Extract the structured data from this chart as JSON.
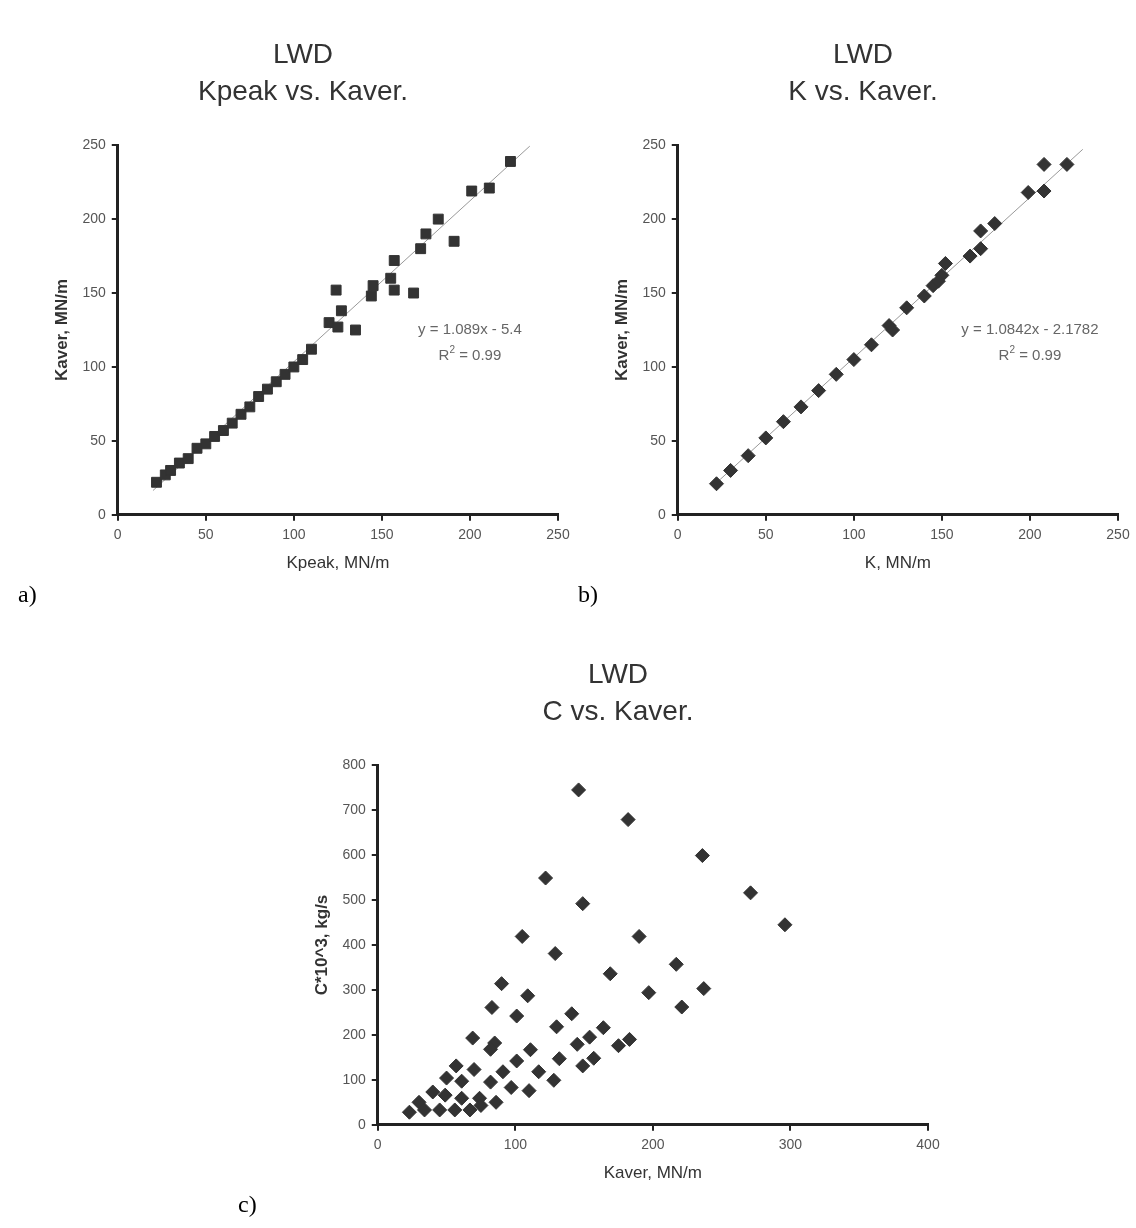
{
  "chart_data": [
    {
      "type": "scatter",
      "title": "LWD",
      "subtitle": "Kpeak vs. Kaver.",
      "xlabel": "Kpeak, MN/m",
      "ylabel": "Kaver, MN/m",
      "xlim": [
        0,
        250
      ],
      "ylim": [
        0,
        250
      ],
      "xticks": [
        0,
        50,
        100,
        150,
        200,
        250
      ],
      "yticks": [
        0,
        50,
        100,
        150,
        200,
        250
      ],
      "grid": false,
      "legend": false,
      "marker": "square",
      "annotations": [
        "y = 1.089x - 5.4",
        "R$^{2}$ = 0.99",
        "a)"
      ],
      "series": [
        {
          "color": "#333333",
          "x": [
            22,
            27,
            30,
            35,
            40,
            45,
            50,
            55,
            60,
            65,
            70,
            75,
            80,
            85,
            90,
            95,
            100,
            105,
            110,
            120,
            124,
            127,
            125,
            135,
            144,
            145,
            155,
            157,
            157,
            168,
            172,
            175,
            182,
            191,
            201,
            211,
            223
          ],
          "values": [
            22,
            27,
            30,
            35,
            38,
            45,
            48,
            53,
            57,
            62,
            68,
            73,
            80,
            85,
            90,
            95,
            100,
            105,
            112,
            130,
            152,
            138,
            127,
            125,
            148,
            155,
            160,
            152,
            172,
            150,
            180,
            190,
            200,
            185,
            219,
            221,
            239
          ]
        },
        {
          "type": "line",
          "marker": "none",
          "color": "#999999",
          "x": [
            20,
            234
          ],
          "values": [
            16.4,
            249.4
          ]
        }
      ]
    },
    {
      "type": "scatter",
      "title": "LWD",
      "subtitle": "K vs. Kaver.",
      "xlabel": "K, MN/m",
      "ylabel": "Kaver, MN/m",
      "xlim": [
        0,
        250
      ],
      "ylim": [
        0,
        250
      ],
      "xticks": [
        0,
        50,
        100,
        150,
        200,
        250
      ],
      "yticks": [
        0,
        50,
        100,
        150,
        200,
        250
      ],
      "grid": false,
      "legend": false,
      "marker": "diamond",
      "annotations": [
        "y = 1.0842x - 2.1782",
        "R$^{2}$ = 0.99",
        "b)"
      ],
      "series": [
        {
          "color": "#333333",
          "x": [
            22,
            30,
            40,
            50,
            60,
            70,
            80,
            90,
            100,
            110,
            120,
            122,
            130,
            140,
            145,
            150,
            148,
            152,
            166,
            172,
            172,
            180,
            199,
            208,
            208,
            221
          ],
          "values": [
            21,
            30,
            40,
            52,
            63,
            73,
            84,
            95,
            105,
            115,
            128,
            125,
            140,
            148,
            155,
            162,
            158,
            170,
            175,
            192,
            180,
            197,
            218,
            219,
            237,
            237
          ]
        },
        {
          "type": "line",
          "marker": "none",
          "color": "#999999",
          "x": [
            20,
            230
          ],
          "values": [
            19.5,
            247.2
          ]
        }
      ]
    },
    {
      "type": "scatter",
      "title": "LWD",
      "subtitle": "C vs. Kaver.",
      "xlabel": "Kaver, MN/m",
      "ylabel": "C*10^3, kg/s",
      "xlim": [
        0,
        400
      ],
      "ylim": [
        0,
        800
      ],
      "xticks": [
        0,
        100,
        200,
        300,
        400
      ],
      "yticks": [
        0,
        100,
        200,
        300,
        400,
        500,
        600,
        700,
        800
      ],
      "grid": false,
      "legend": false,
      "marker": "diamond",
      "annotations": [
        "c)"
      ],
      "series": [
        {
          "color": "#333333",
          "x": [
            146,
            182,
            236,
            271,
            296,
            122,
            149,
            105,
            190,
            129,
            169,
            217,
            237,
            221,
            197,
            90,
            83,
            109,
            101,
            141,
            130,
            164,
            154,
            145,
            183,
            175,
            157,
            149,
            69,
            85,
            82,
            111,
            132,
            101,
            117,
            128,
            91,
            82,
            97,
            110,
            86,
            57,
            70,
            50,
            61,
            40,
            49,
            30,
            61,
            74,
            23,
            34,
            45,
            56,
            67,
            75
          ],
          "values": [
            745,
            679,
            599,
            516,
            445,
            549,
            492,
            419,
            419,
            381,
            336,
            357,
            303,
            262,
            294,
            314,
            261,
            287,
            242,
            247,
            218,
            216,
            195,
            179,
            190,
            176,
            148,
            131,
            193,
            182,
            168,
            167,
            147,
            142,
            118,
            99,
            118,
            95,
            83,
            76,
            50,
            131,
            123,
            104,
            97,
            73,
            66,
            50,
            59,
            59,
            28,
            33,
            33,
            33,
            33,
            43
          ]
        }
      ]
    }
  ]
}
